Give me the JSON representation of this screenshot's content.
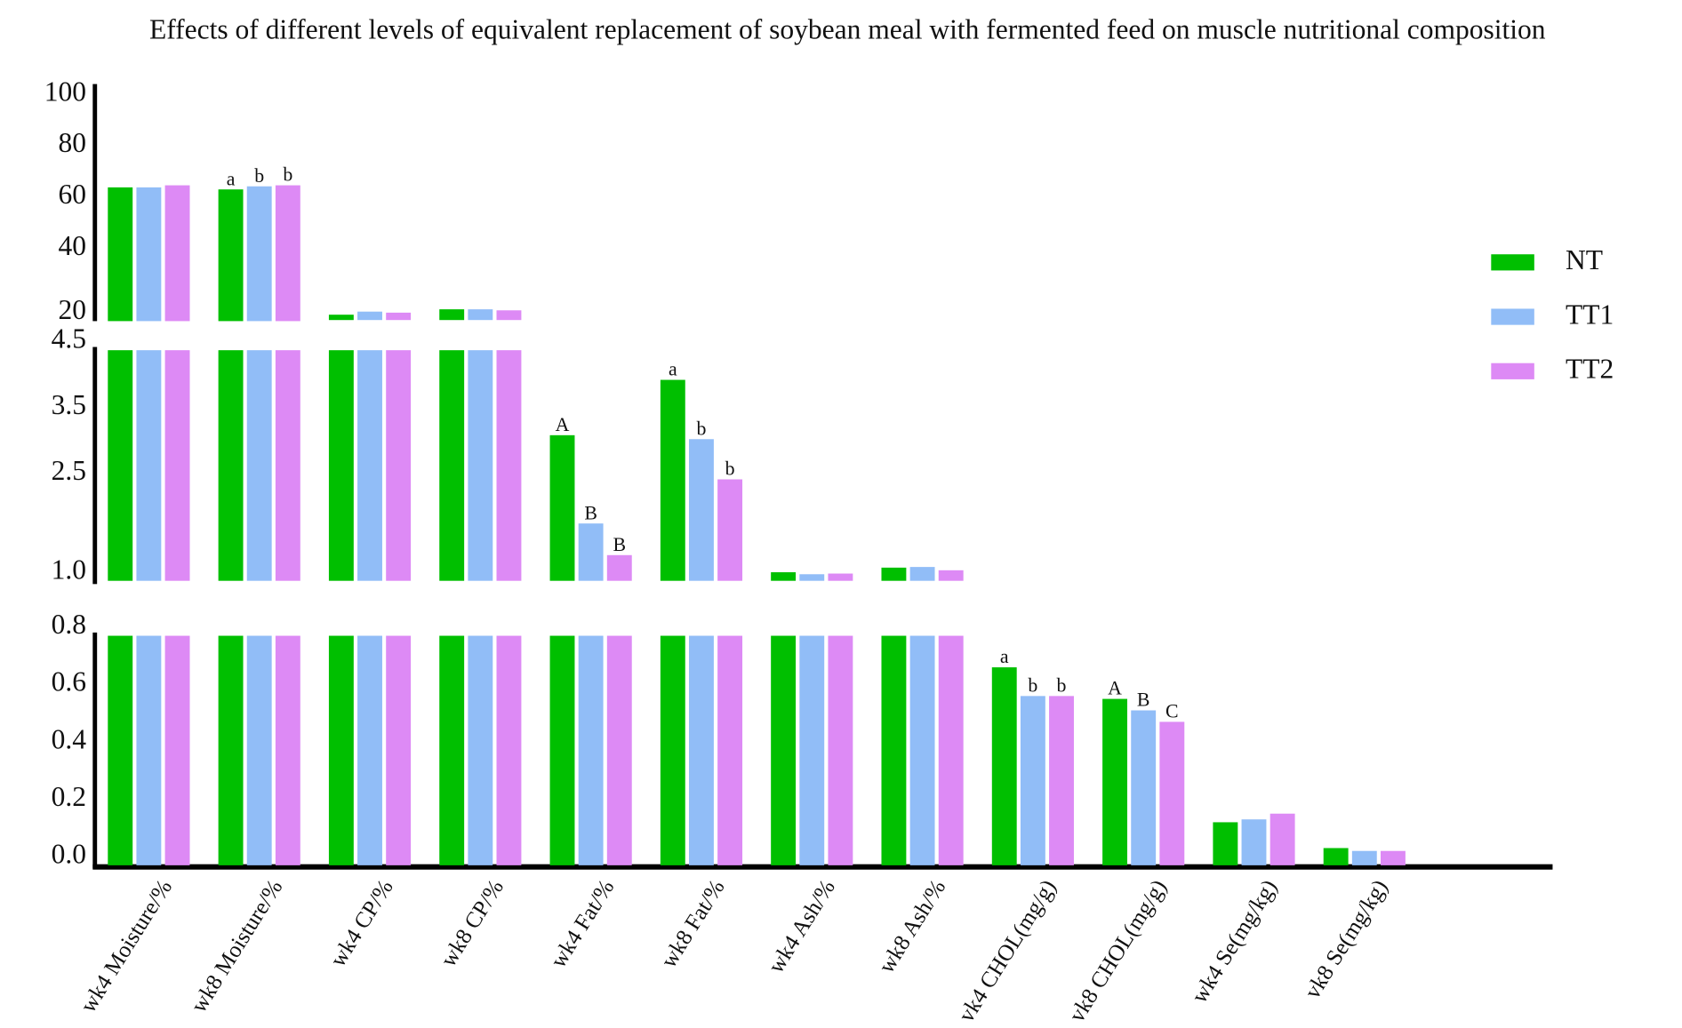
{
  "chart_data": {
    "type": "bar",
    "title": "Effects of different levels of equivalent replacement of soybean meal with fermented feed on muscle nutritional composition",
    "xlabel": "",
    "ylabel": "",
    "broken_axis": true,
    "segments": [
      {
        "name": "top",
        "range": [
          15,
          100
        ],
        "ticks": [
          "100",
          "80",
          "60",
          "40",
          "20"
        ],
        "tick_values": [
          100,
          80,
          60,
          40,
          20
        ]
      },
      {
        "name": "middle",
        "range": [
          1.0,
          4.5
        ],
        "ticks": [
          "4.5",
          "3.5",
          "2.5",
          "1.0"
        ],
        "tick_values": [
          4.5,
          3.5,
          2.5,
          1.0
        ]
      },
      {
        "name": "bottom",
        "range": [
          0,
          0.8
        ],
        "ticks": [
          "0.8",
          "0.6",
          "0.4",
          "0.2",
          "0.0"
        ],
        "tick_values": [
          0.8,
          0.6,
          0.4,
          0.2,
          0.0
        ]
      }
    ],
    "categories": [
      "wk4 Moisture/%",
      "wk8 Moisture/%",
      "wk4 CP/%",
      "wk8 CP/%",
      "wk4 Fat/%",
      "wk8 Fat/%",
      "wk4 Ash/%",
      "wk8 Ash/%",
      "vk4 CHOL(mg/g)",
      "vk8 CHOL(mg/g)",
      "wk4 Se(mg/kg)",
      "vk8 Se(mg/kg)"
    ],
    "series": [
      {
        "name": "NT",
        "color": "#00bf00",
        "values": [
          67.1,
          66.3,
          17.5,
          19.6,
          3.21,
          4.05,
          1.13,
          1.2,
          0.69,
          0.58,
          0.15,
          0.06
        ]
      },
      {
        "name": "TT1",
        "color": "#91bdf7",
        "values": [
          67.1,
          67.5,
          18.7,
          19.6,
          1.87,
          3.15,
          1.1,
          1.21,
          0.59,
          0.54,
          0.16,
          0.05
        ]
      },
      {
        "name": "TT2",
        "color": "#dd8af5",
        "values": [
          67.9,
          67.9,
          18.3,
          19.2,
          1.39,
          2.54,
          1.11,
          1.16,
          0.59,
          0.5,
          0.18,
          0.05
        ]
      }
    ],
    "annotations": [
      [
        "",
        "",
        "",
        "",
        "",
        "",
        "",
        "",
        "",
        "",
        "",
        ""
      ],
      [
        "",
        "",
        "",
        "",
        "",
        "",
        "",
        "",
        "",
        "",
        "",
        ""
      ],
      [
        "",
        "",
        "",
        "",
        "",
        "",
        "",
        "",
        "",
        "",
        "",
        ""
      ]
    ],
    "annotation_letters": {
      "wk8 Moisture/%": [
        "a",
        "b",
        "b"
      ],
      "wk4 Fat/%": [
        "A",
        "B",
        "B"
      ],
      "wk8 Fat/%": [
        "a",
        "b",
        "b"
      ],
      "vk4 CHOL(mg/g)": [
        "a",
        "b",
        "b"
      ],
      "vk8 CHOL(mg/g)": [
        "A",
        "B",
        "C"
      ]
    },
    "legend": {
      "position": "right",
      "entries": [
        "NT",
        "TT1",
        "TT2"
      ]
    }
  }
}
